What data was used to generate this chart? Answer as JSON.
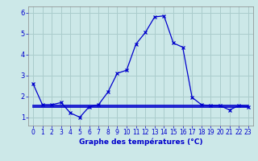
{
  "xlabel": "Graphe des températures (°C)",
  "background_color": "#cce8e8",
  "grid_color": "#aacccc",
  "line_color": "#0000cc",
  "xlim": [
    -0.5,
    23.5
  ],
  "ylim": [
    0.6,
    6.3
  ],
  "xticks": [
    0,
    1,
    2,
    3,
    4,
    5,
    6,
    7,
    8,
    9,
    10,
    11,
    12,
    13,
    14,
    15,
    16,
    17,
    18,
    19,
    20,
    21,
    22,
    23
  ],
  "yticks": [
    1,
    2,
    3,
    4,
    5,
    6
  ],
  "series0": [
    2.6,
    1.6,
    1.6,
    1.7,
    1.2,
    1.0,
    1.5,
    1.6,
    2.2,
    3.1,
    3.25,
    4.5,
    5.05,
    5.8,
    5.85,
    4.55,
    4.35,
    1.95,
    1.6,
    1.55,
    1.55,
    1.35,
    1.55,
    1.5
  ],
  "series1": [
    1.55,
    1.55,
    1.55,
    1.55,
    1.55,
    1.55,
    1.55,
    1.55,
    1.55,
    1.55,
    1.55,
    1.55,
    1.55,
    1.55,
    1.55,
    1.55,
    1.55,
    1.55,
    1.55,
    1.55,
    1.55,
    1.55,
    1.55,
    1.55
  ],
  "series2": [
    1.5,
    1.5,
    1.5,
    1.5,
    1.5,
    1.5,
    1.5,
    1.5,
    1.5,
    1.5,
    1.5,
    1.5,
    1.5,
    1.5,
    1.5,
    1.5,
    1.5,
    1.5,
    1.5,
    1.5,
    1.5,
    1.5,
    1.5,
    1.5
  ]
}
